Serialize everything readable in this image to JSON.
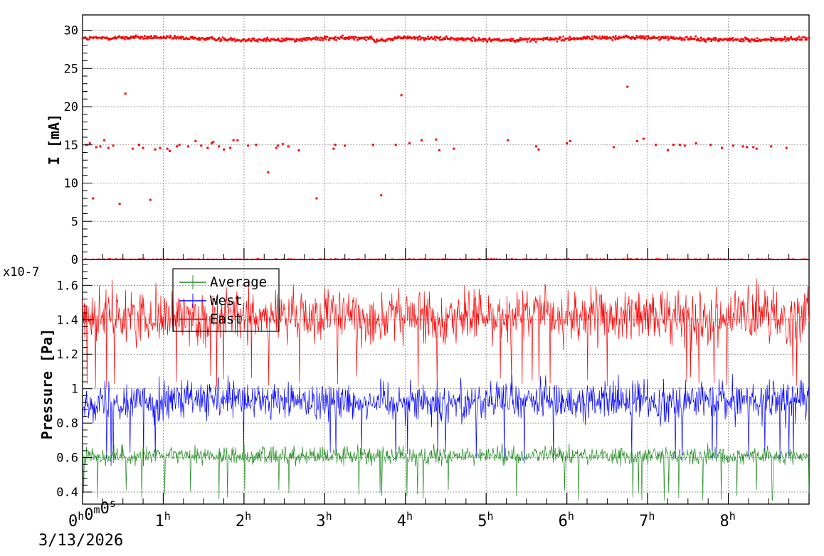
{
  "chart_data": [
    {
      "type": "scatter",
      "ylabel": "I [mA]",
      "ylim": [
        0,
        32
      ],
      "xlim_hours": [
        0,
        9.0
      ],
      "yticks": [
        "0",
        "5",
        "10",
        "15",
        "20",
        "25",
        "30"
      ],
      "grid": true,
      "series": [
        {
          "color": "#ff0000",
          "bands": [
            {
              "center": 28.9,
              "spread": 0.25,
              "count": 900
            },
            {
              "center": 0.0,
              "spread": 0.05,
              "count": 300
            }
          ],
          "x": [
            0.05,
            0.09,
            0.13,
            0.17,
            0.22,
            0.27,
            0.32,
            0.38,
            0.46,
            0.53,
            0.62,
            0.7,
            0.75,
            0.84,
            0.9,
            0.96,
            1.05,
            1.08,
            1.17,
            1.2,
            1.31,
            1.4,
            1.47,
            1.55,
            1.6,
            1.62,
            1.69,
            1.75,
            1.83,
            1.87,
            1.92,
            2.05,
            2.15,
            2.3,
            2.4,
            2.42,
            2.48,
            2.55,
            2.68,
            2.9,
            3.11,
            3.13,
            3.25,
            3.6,
            3.7,
            3.88,
            3.95,
            4.05,
            4.2,
            4.38,
            4.42,
            4.6,
            5.27,
            5.62,
            5.65,
            6.0,
            6.04,
            6.58,
            6.75,
            6.87,
            6.95,
            7.1,
            7.25,
            7.32,
            7.4,
            7.46,
            7.6,
            7.78,
            7.92,
            8.06,
            8.18,
            8.23,
            8.31,
            8.35,
            8.53,
            8.72
          ],
          "y": [
            15.0,
            15.2,
            8.0,
            14.7,
            14.8,
            15.6,
            14.6,
            14.9,
            7.3,
            21.7,
            14.5,
            15.0,
            14.6,
            7.8,
            14.4,
            14.6,
            14.5,
            14.2,
            14.8,
            15.0,
            14.8,
            15.5,
            14.9,
            14.6,
            15.2,
            15.4,
            14.8,
            14.4,
            14.6,
            15.6,
            15.6,
            14.9,
            15.0,
            11.4,
            14.6,
            14.9,
            15.1,
            14.8,
            14.3,
            8.0,
            14.5,
            15.0,
            14.9,
            15.0,
            8.4,
            15.0,
            21.5,
            15.2,
            15.6,
            15.7,
            14.3,
            14.5,
            15.6,
            14.8,
            14.4,
            15.2,
            15.5,
            14.7,
            22.6,
            15.5,
            15.8,
            15.0,
            14.3,
            15.0,
            15.0,
            14.9,
            15.2,
            15.0,
            14.6,
            14.9,
            14.8,
            14.7,
            14.7,
            14.5,
            14.8,
            14.6
          ]
        }
      ]
    },
    {
      "type": "line",
      "ylabel": "Pressure [Pa]",
      "yscale_label": "x10-7",
      "ylim": [
        0.33,
        1.75
      ],
      "xlim_hours": [
        0,
        9.0
      ],
      "yticks": [
        "0.4",
        "0.6",
        "0.8",
        "1",
        "1.2",
        "1.4",
        "1.6"
      ],
      "grid": true,
      "legend": "top-left",
      "series": [
        {
          "name": "Average",
          "color": "#228b22",
          "mean": 0.61,
          "amplitude": 0.05,
          "low": 0.35,
          "high": 0.75
        },
        {
          "name": "West",
          "color": "#0000ff",
          "mean": 0.93,
          "amplitude": 0.11,
          "low": 0.55,
          "high": 1.15
        },
        {
          "name": "East",
          "color": "#ff0000",
          "mean": 1.42,
          "amplitude": 0.15,
          "low": 1.0,
          "high": 1.7
        }
      ]
    }
  ],
  "time_axis": {
    "start_label": "0h0m0s",
    "start_date": "3/13/2026",
    "hour_labels": [
      "1h",
      "2h",
      "3h",
      "4h",
      "5h",
      "6h",
      "7h",
      "8h"
    ]
  }
}
